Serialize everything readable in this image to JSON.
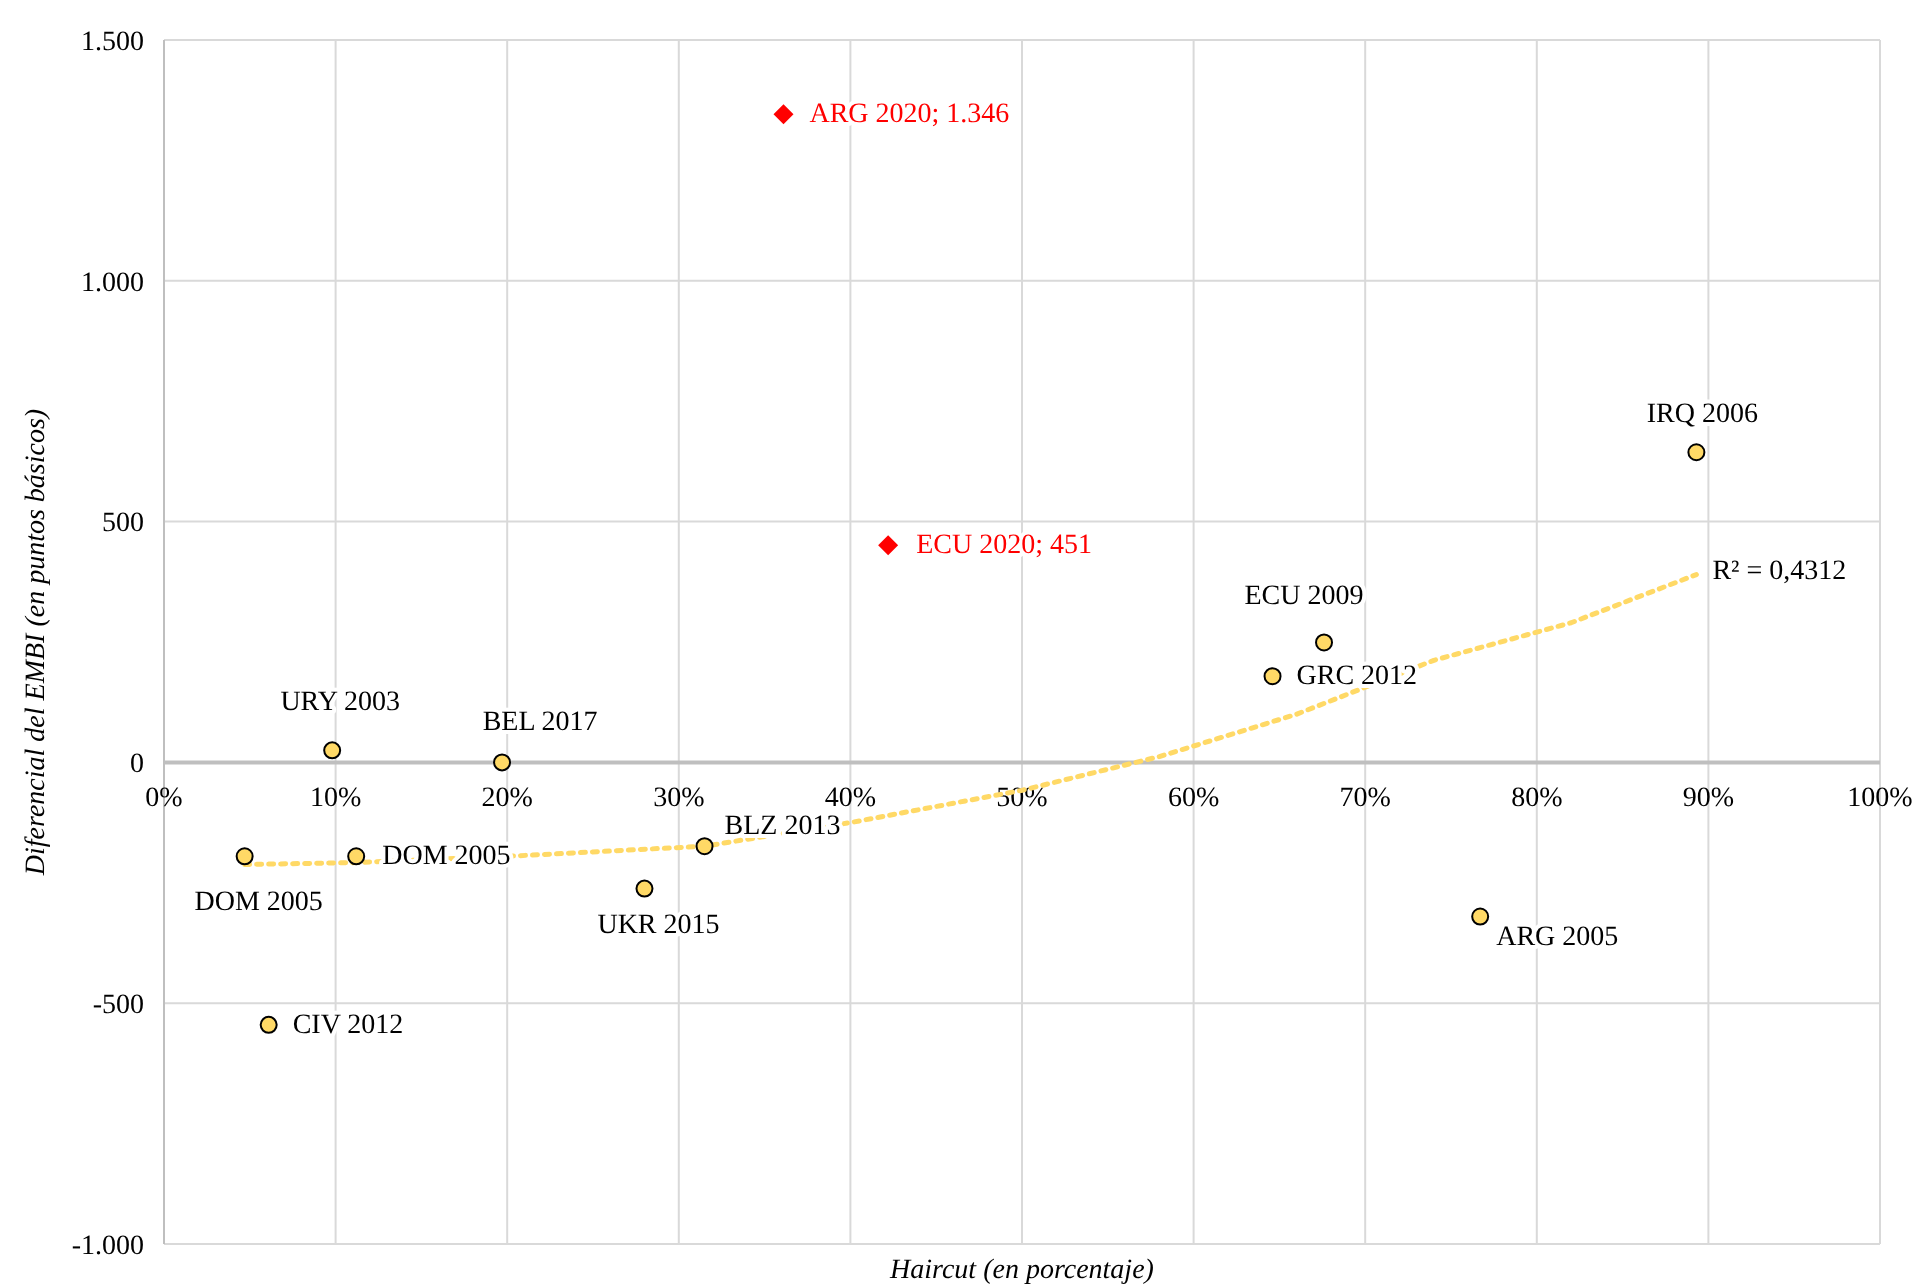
{
  "chart_data": {
    "type": "scatter",
    "xlabel": "Haircut (en porcentaje)",
    "ylabel": "Diferencial del EMBI (en puntos básicos)",
    "xlim": [
      0,
      100
    ],
    "ylim": [
      -1000,
      1500
    ],
    "xticks": [
      {
        "value": 0,
        "label": "0%"
      },
      {
        "value": 10,
        "label": "10%"
      },
      {
        "value": 20,
        "label": "20%"
      },
      {
        "value": 30,
        "label": "30%"
      },
      {
        "value": 40,
        "label": "40%"
      },
      {
        "value": 50,
        "label": "50%"
      },
      {
        "value": 60,
        "label": "60%"
      },
      {
        "value": 70,
        "label": "70%"
      },
      {
        "value": 80,
        "label": "80%"
      },
      {
        "value": 90,
        "label": "90%"
      },
      {
        "value": 100,
        "label": "100%"
      }
    ],
    "yticks": [
      {
        "value": -1000,
        "label": "-1.000"
      },
      {
        "value": -500,
        "label": "-500"
      },
      0,
      500,
      {
        "value": 1000,
        "label": "1.000"
      },
      {
        "value": 1500,
        "label": "1.500"
      }
    ],
    "grid": true,
    "series": [
      {
        "color": "#ffd966",
        "marker": "circle",
        "x": [
          9.8,
          19.7,
          4.7,
          11.2,
          6.1,
          28,
          31.5,
          64.6,
          67.6,
          76.7,
          89.3
        ],
        "values": [
          25,
          0,
          -195,
          -195,
          -545,
          -262,
          -174,
          179,
          249,
          -320,
          644
        ],
        "value_labels": [
          "URY 2003",
          "BEL 2017",
          "DOM 2005",
          "DOM 2005",
          "CIV 2012",
          "UKR 2015",
          "BLZ 2013",
          "GRC 2012",
          "ECU 2009",
          "ARG 2005",
          "IRQ 2006"
        ]
      },
      {
        "type": "scatter",
        "color": "#ff0000",
        "marker": "diamond",
        "x": [
          36.1,
          42.2
        ],
        "values": [
          1346,
          451
        ],
        "value_labels": [
          "ARG 2020; 1.346",
          "ECU 2020; 451"
        ]
      },
      {
        "type": "line",
        "color": "#ffd966",
        "line_style": "dotted",
        "marker": "none",
        "x": [
          4.7,
          11.2,
          20,
          31.5,
          40,
          50,
          58,
          66,
          74,
          82,
          89.3
        ],
        "values": [
          -212,
          -208,
          -195,
          -174,
          -125,
          -58,
          12,
          100,
          212,
          290,
          390
        ]
      }
    ],
    "annotations": [
      {
        "text": "R² = 0,4312",
        "x": 89.3,
        "y": 390
      }
    ]
  }
}
